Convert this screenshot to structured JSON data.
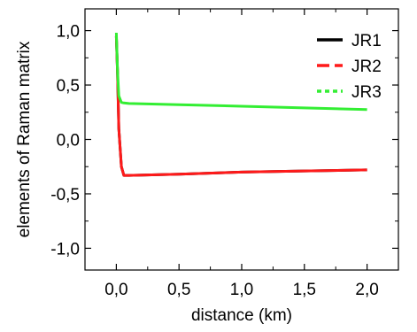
{
  "chart_data": {
    "type": "line",
    "xlabel": "distance (km)",
    "ylabel": "elements of Raman matrix",
    "xlim": [
      -0.25,
      2.25
    ],
    "ylim": [
      -1.2,
      1.2
    ],
    "x_ticks": [
      0.0,
      0.5,
      1.0,
      1.5,
      2.0
    ],
    "x_tick_labels": [
      "0,0",
      "0,5",
      "1,0",
      "1,5",
      "2,0"
    ],
    "y_ticks": [
      -1.0,
      -0.5,
      0.0,
      0.5,
      1.0
    ],
    "y_tick_labels": [
      "-1,0",
      "-0,5",
      "0,0",
      "0,5",
      "1,0"
    ],
    "grid": false,
    "legend_position": "top-right",
    "series": [
      {
        "name": "JR1",
        "color": "#000000",
        "style": "solid",
        "x": [
          0.0,
          0.01,
          0.02,
          0.04,
          0.06,
          0.1,
          0.5,
          1.0,
          1.5,
          2.0
        ],
        "y": [
          0.95,
          0.6,
          0.1,
          -0.25,
          -0.33,
          -0.33,
          -0.32,
          -0.3,
          -0.29,
          -0.28
        ]
      },
      {
        "name": "JR2",
        "color": "#ff1a1a",
        "style": "dashed",
        "x": [
          0.0,
          0.01,
          0.02,
          0.04,
          0.06,
          0.1,
          0.5,
          1.0,
          1.5,
          2.0
        ],
        "y": [
          0.95,
          0.6,
          0.1,
          -0.25,
          -0.33,
          -0.33,
          -0.32,
          -0.3,
          -0.29,
          -0.28
        ]
      },
      {
        "name": "JR3",
        "color": "#33ee33",
        "style": "dotted",
        "x": [
          0.0,
          0.01,
          0.02,
          0.04,
          0.06,
          0.1,
          0.5,
          1.0,
          1.5,
          2.0
        ],
        "y": [
          0.98,
          0.62,
          0.4,
          0.34,
          0.335,
          0.33,
          0.32,
          0.305,
          0.29,
          0.275
        ]
      }
    ]
  }
}
